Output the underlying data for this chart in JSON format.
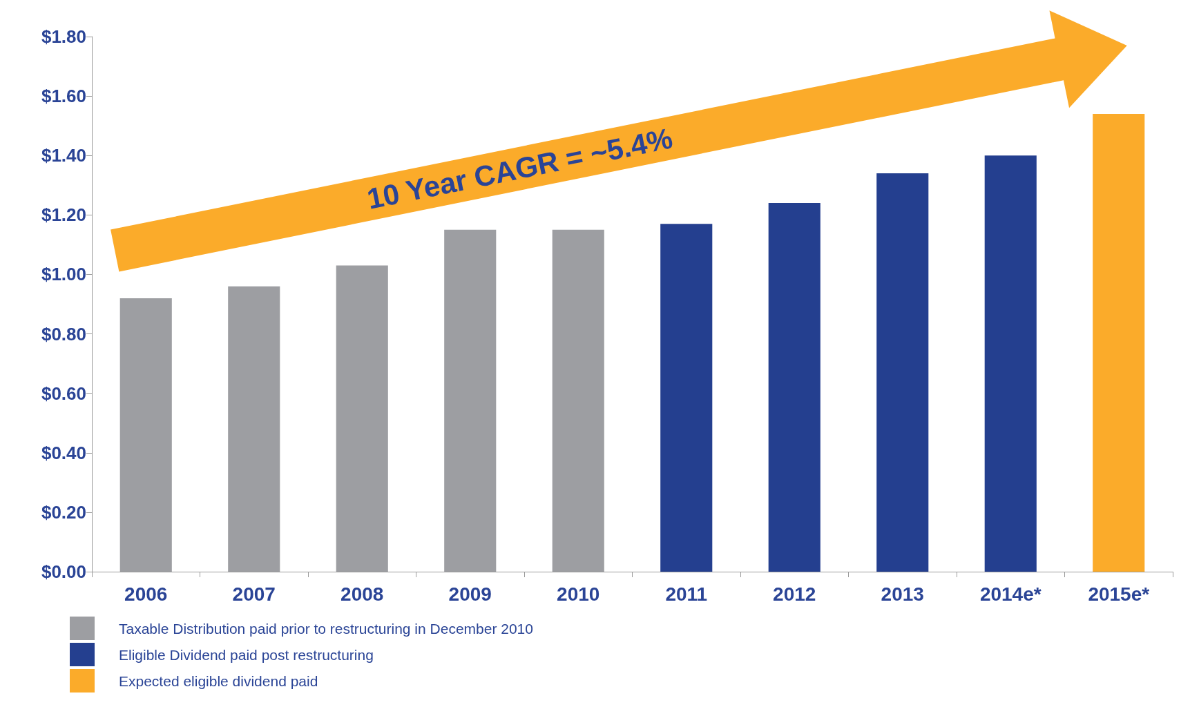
{
  "chart_data": {
    "type": "bar",
    "stacked": true,
    "categories": [
      "2006",
      "2007",
      "2008",
      "2009",
      "2010",
      "2011",
      "2012",
      "2013",
      "2014e*",
      "2015e*"
    ],
    "series": [
      {
        "name": "Taxable Distribution paid prior to restructuring in December 2010",
        "color": "#9d9ea2",
        "values": [
          0.92,
          0.96,
          1.03,
          1.15,
          1.15,
          null,
          null,
          null,
          null,
          null
        ]
      },
      {
        "name": "Eligible Dividend paid post restructuring",
        "color": "#243f8f",
        "values": [
          null,
          null,
          null,
          null,
          null,
          1.17,
          1.24,
          1.34,
          1.4,
          null
        ]
      },
      {
        "name": "Expected eligible dividend paid",
        "color": "#fbab2a",
        "values": [
          null,
          null,
          null,
          null,
          null,
          null,
          null,
          null,
          null,
          1.54
        ]
      }
    ],
    "ylim": [
      0,
      1.8
    ],
    "yticks": [
      {
        "value": 0,
        "label": "$0.00"
      },
      {
        "value": 0.2,
        "label": "$0.20"
      },
      {
        "value": 0.4,
        "label": "$0.40"
      },
      {
        "value": 0.6,
        "label": "$0.60"
      },
      {
        "value": 0.8,
        "label": "$0.80"
      },
      {
        "value": 1.0,
        "label": "$1.00"
      },
      {
        "value": 1.2,
        "label": "$1.20"
      },
      {
        "value": 1.4,
        "label": "$1.40"
      },
      {
        "value": 1.6,
        "label": "$1.60"
      },
      {
        "value": 1.8,
        "label": "$1.80"
      }
    ],
    "grid": false,
    "legend": "bottom left",
    "annotations": [
      "10 Year CAGR = ~5.4%"
    ]
  }
}
